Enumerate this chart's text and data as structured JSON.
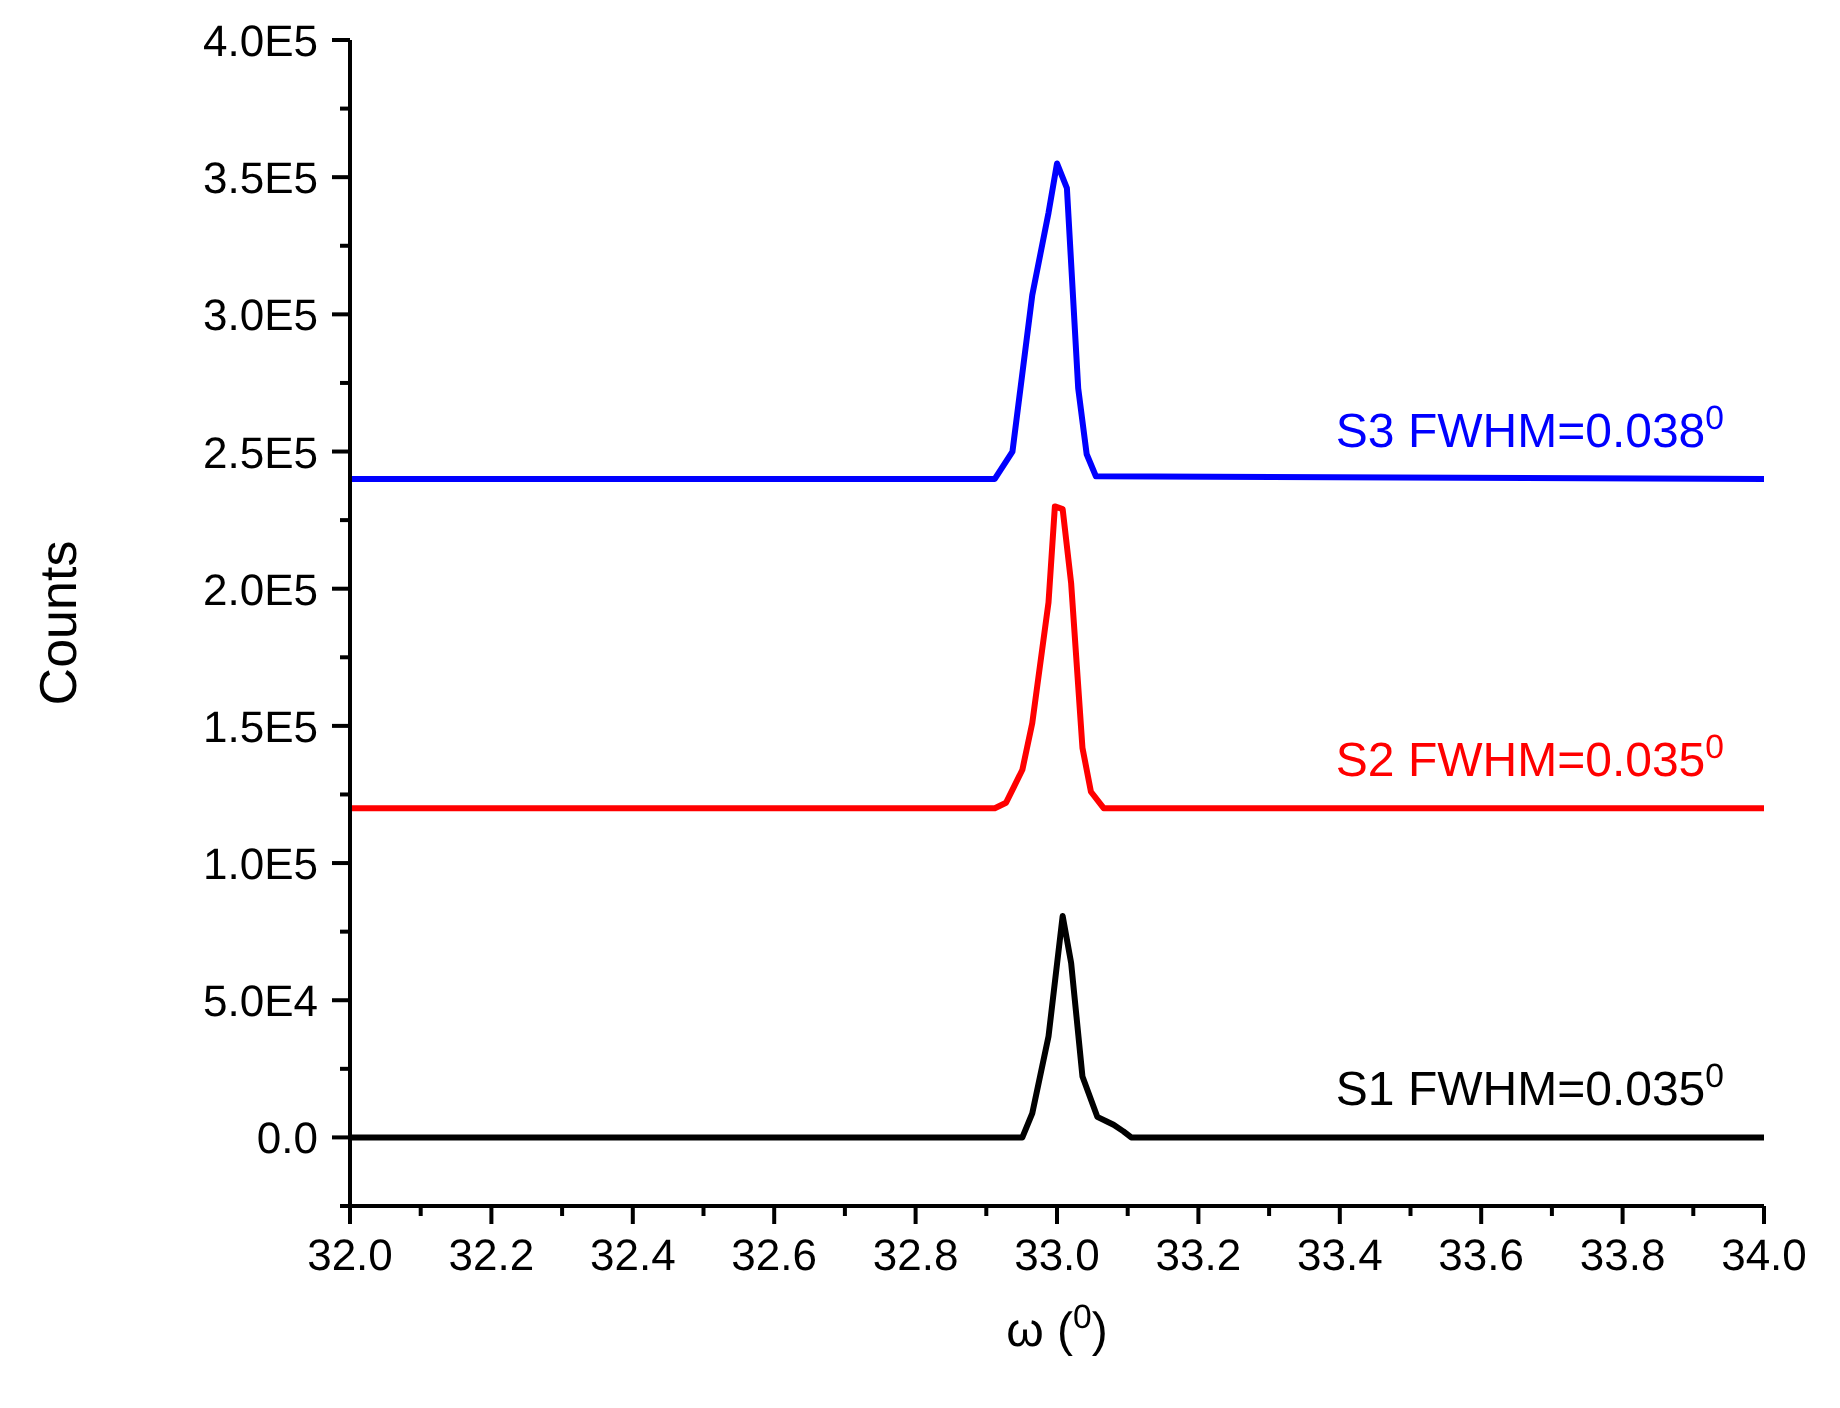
{
  "chart_data": {
    "type": "line",
    "xlabel": "ω ($^{0}$)",
    "ylabel": "Counts",
    "legend": false,
    "grid": false,
    "marker": "none",
    "line_style": "solid",
    "xlim": [
      32.0,
      34.0
    ],
    "ylim": [
      -25000,
      400000
    ],
    "xticks": [
      {
        "value": 32.0,
        "label": "32.0"
      },
      {
        "value": 32.1,
        "label": null
      },
      {
        "value": 32.2,
        "label": "32.2"
      },
      {
        "value": 32.3,
        "label": null
      },
      {
        "value": 32.4,
        "label": "32.4"
      },
      {
        "value": 32.5,
        "label": null
      },
      {
        "value": 32.6,
        "label": "32.6"
      },
      {
        "value": 32.7,
        "label": null
      },
      {
        "value": 32.8,
        "label": "32.8"
      },
      {
        "value": 32.9,
        "label": null
      },
      {
        "value": 33.0,
        "label": "33.0"
      },
      {
        "value": 33.1,
        "label": null
      },
      {
        "value": 33.2,
        "label": "33.2"
      },
      {
        "value": 33.3,
        "label": null
      },
      {
        "value": 33.4,
        "label": "33.4"
      },
      {
        "value": 33.5,
        "label": null
      },
      {
        "value": 33.6,
        "label": "33.6"
      },
      {
        "value": 33.7,
        "label": null
      },
      {
        "value": 33.8,
        "label": "33.8"
      },
      {
        "value": 33.9,
        "label": null
      },
      {
        "value": 34.0,
        "label": "34.0"
      }
    ],
    "yticks": [
      {
        "value": -25000,
        "label": null
      },
      {
        "value": 0,
        "label": "0.0"
      },
      {
        "value": 25000,
        "label": null
      },
      {
        "value": 50000,
        "label": "5.0E4"
      },
      {
        "value": 75000,
        "label": null
      },
      {
        "value": 100000,
        "label": "1.0E5"
      },
      {
        "value": 125000,
        "label": null
      },
      {
        "value": 150000,
        "label": "1.5E5"
      },
      {
        "value": 175000,
        "label": null
      },
      {
        "value": 200000,
        "label": "2.0E5"
      },
      {
        "value": 225000,
        "label": null
      },
      {
        "value": 250000,
        "label": "2.5E5"
      },
      {
        "value": 275000,
        "label": null
      },
      {
        "value": 300000,
        "label": "3.0E5"
      },
      {
        "value": 325000,
        "label": null
      },
      {
        "value": 350000,
        "label": "3.5E5"
      },
      {
        "value": 375000,
        "label": null
      },
      {
        "value": 400000,
        "label": "4.0E5"
      }
    ],
    "series": [
      {
        "name": "S1 FWHM=0.035$^{0}$",
        "color": "#000000",
        "x": [
          32.0,
          32.951,
          32.965,
          32.988,
          33.008,
          33.02,
          33.036,
          33.057,
          33.08,
          33.094,
          33.105,
          34.0
        ],
        "values": [
          0,
          0,
          8800,
          36800,
          80700,
          63600,
          22200,
          7500,
          4600,
          2200,
          0,
          0
        ]
      },
      {
        "name": "S2 FWHM=0.035$^{0}$",
        "color": "#ff0000",
        "x": [
          32.0,
          32.912,
          32.928,
          32.951,
          32.965,
          32.988,
          32.997,
          33.008,
          33.02,
          33.036,
          33.048,
          33.066,
          34.0
        ],
        "values": [
          120000,
          120000,
          122000,
          134000,
          151000,
          195000,
          230000,
          229000,
          202000,
          142000,
          126000,
          120000,
          120000
        ]
      },
      {
        "name": "S3 FWHM=0.038$^{0}$",
        "color": "#0000ff",
        "x": [
          32.0,
          32.912,
          32.937,
          32.965,
          32.988,
          33.0,
          33.014,
          33.03,
          33.042,
          33.055,
          34.0
        ],
        "values": [
          240000,
          240000,
          250000,
          307000,
          337000,
          355000,
          346000,
          273000,
          249000,
          241000,
          240000
        ]
      }
    ]
  }
}
